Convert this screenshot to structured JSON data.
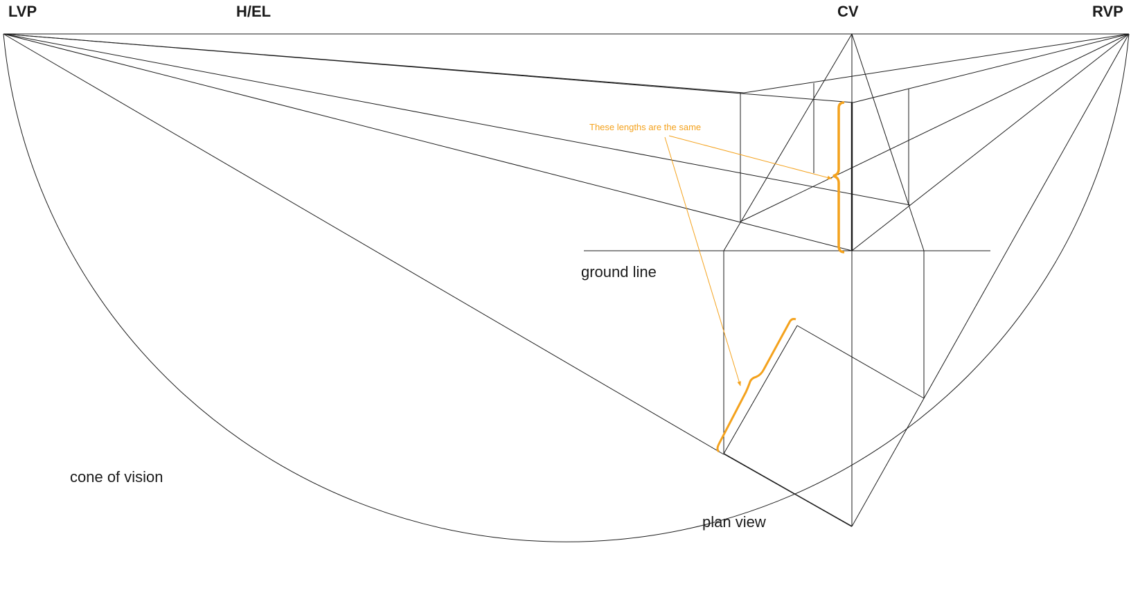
{
  "vanishing_points": {
    "left": "LVP",
    "right": "RVP",
    "center": "CV"
  },
  "horizon_label": "H/EL",
  "labels": {
    "ground_line": "ground line",
    "plan_view": "plan view",
    "cone_of_vision": "cone of vision"
  },
  "annotation": "These lengths are the same",
  "colors": {
    "line": "#1a1a1a",
    "annotation": "#f4a21d",
    "background": "#ffffff"
  }
}
